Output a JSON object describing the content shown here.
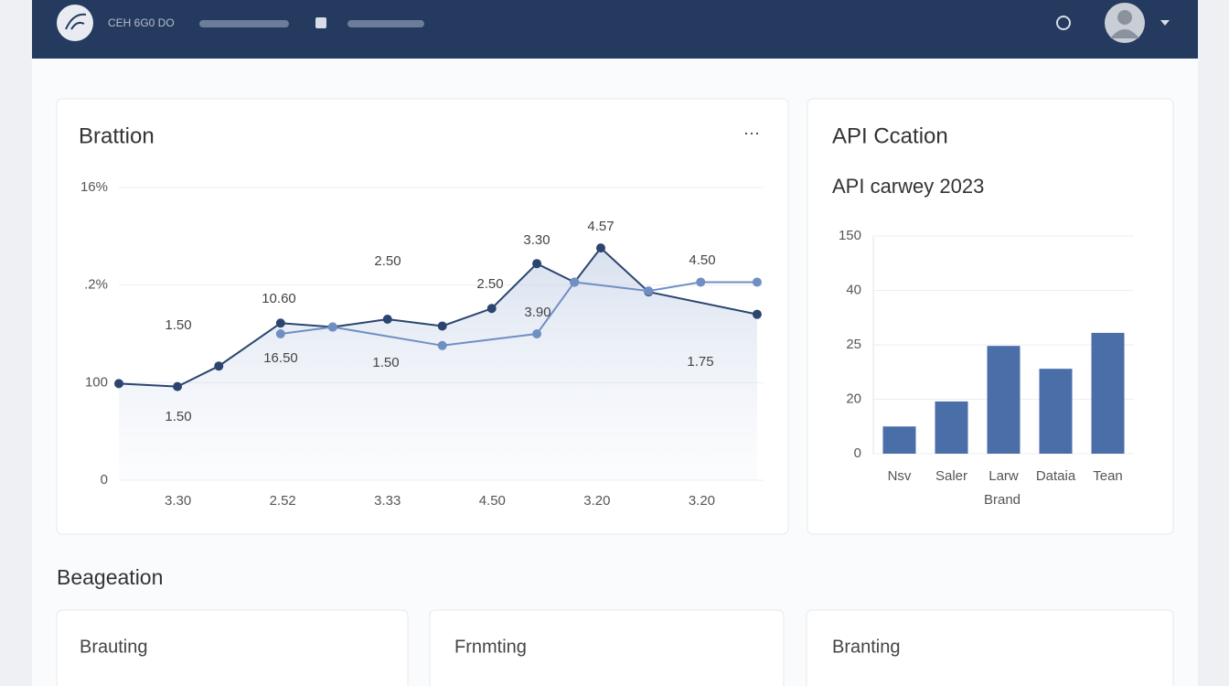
{
  "header": {
    "brand": "CEH 6G0 DO"
  },
  "chart_data": [
    {
      "type": "line",
      "title": "Brattion",
      "menu": "···",
      "xlim": [
        0,
        12
      ],
      "xticks": [
        {
          "value": 1.1,
          "label": "3.30"
        },
        {
          "value": 3.05,
          "label": "2.52"
        },
        {
          "value": 5.0,
          "label": "3.33"
        },
        {
          "value": 6.95,
          "label": "4.50"
        },
        {
          "value": 8.9,
          "label": "3.20"
        },
        {
          "value": 10.85,
          "label": "3.20"
        }
      ],
      "ylim": [
        0,
        3
      ],
      "yticks": [
        {
          "value": 0,
          "label": "0"
        },
        {
          "value": 1,
          "label": "100"
        },
        {
          "value": 2,
          "label": ".2%"
        },
        {
          "value": 3,
          "label": "16%"
        }
      ],
      "grid": true,
      "series": [
        {
          "color": "#2b4570",
          "x": [
            0,
            1.09,
            1.86,
            3.01,
            3.98,
            5.0,
            6.02,
            6.94,
            7.78,
            8.48,
            8.97,
            9.86,
            11.88
          ],
          "values": [
            0.99,
            0.96,
            1.17,
            1.61,
            1.57,
            1.65,
            1.58,
            1.76,
            2.22,
            2.03,
            2.38,
            1.93,
            1.7
          ]
        },
        {
          "color": "#6f8fc4",
          "x": [
            3.01,
            3.98,
            6.02,
            7.78,
            8.48,
            9.86,
            10.83,
            11.88
          ],
          "values": [
            1.5,
            1.57,
            1.38,
            1.5,
            2.03,
            1.94,
            2.03,
            2.03
          ]
        }
      ],
      "annotations": [
        "1.50",
        "1.50",
        "10.60",
        "16.50",
        "2.50",
        "1.50",
        "2.50",
        "3.90",
        "3.30",
        "4.57",
        "4.50",
        "1.75"
      ]
    },
    {
      "type": "bar",
      "title": "API Ccation",
      "subtitle": "API carwey 2023",
      "xlabel": "Brand",
      "categories": [
        "Nsv",
        "Saler",
        "Larw",
        "Dataia",
        "Tean"
      ],
      "values": [
        0.5,
        0.96,
        1.98,
        1.56,
        2.22
      ],
      "color": "#4a6ea8",
      "ylim": [
        0,
        4
      ],
      "yticks": [
        {
          "value": 0,
          "label": "0"
        },
        {
          "value": 1,
          "label": "20"
        },
        {
          "value": 2,
          "label": "25"
        },
        {
          "value": 3,
          "label": "40"
        },
        {
          "value": 4,
          "label": "150"
        }
      ],
      "grid": true
    }
  ],
  "section": {
    "title": "Beageation",
    "cards": [
      "Brauting",
      "Frnmting",
      "Branting"
    ]
  }
}
